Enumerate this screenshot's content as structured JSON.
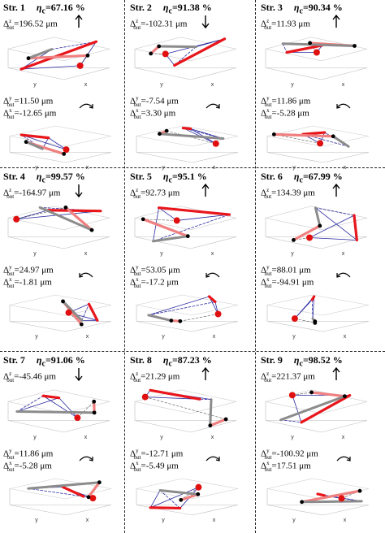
{
  "panels": [
    {
      "title": "Str. 1",
      "eff_symbol": "η",
      "eff_sub": "c",
      "eff_value": "=67.16 %",
      "dz_label": "Δ",
      "dz_sup": "z",
      "dz_sub": "out",
      "dz_value": "=196.52 μm",
      "dz_arrow": "up",
      "dy_label": "Δ",
      "dy_sup": "y",
      "dy_sub": "out",
      "dy_value": "=11.50 μm",
      "dx_label": "Δ",
      "dx_sup": "x",
      "dx_sub": "out",
      "dx_value": "=-12.65 μm",
      "rot_arrow": "cw"
    },
    {
      "title": "Str. 2",
      "eff_symbol": "η",
      "eff_sub": "c",
      "eff_value": "=91.38 %",
      "dz_label": "Δ",
      "dz_sup": "z",
      "dz_sub": "out",
      "dz_value": "=-102.31 μm",
      "dz_arrow": "down",
      "dy_label": "Δ",
      "dy_sup": "y",
      "dy_sub": "out",
      "dy_value": "=-7.54 μm",
      "dx_label": "Δ",
      "dx_sup": "x",
      "dx_sub": "out",
      "dx_value": "=3.30 μm",
      "rot_arrow": "cw"
    },
    {
      "title": "Str. 3",
      "eff_symbol": "η",
      "eff_sub": "c",
      "eff_value": "=90.34 %",
      "dz_label": "Δ",
      "dz_sup": "z",
      "dz_sub": "out",
      "dz_value": "=11.93 μm",
      "dz_arrow": "up",
      "dy_label": "Δ",
      "dy_sup": "y",
      "dy_sub": "out",
      "dy_value": "=11.86 μm",
      "dx_label": "Δ",
      "dx_sup": "x",
      "dx_sub": "out",
      "dx_value": "=-5.28 μm",
      "rot_arrow": "ccw"
    },
    {
      "title": "Str. 4",
      "eff_symbol": "η",
      "eff_sub": "c",
      "eff_value": "=99.57 %",
      "dz_label": "Δ",
      "dz_sup": "z",
      "dz_sub": "out",
      "dz_value": "=-164.97 μm",
      "dz_arrow": "down",
      "dy_label": "Δ",
      "dy_sup": "y",
      "dy_sub": "out",
      "dy_value": "=24.97 μm",
      "dx_label": "Δ",
      "dx_sup": "x",
      "dx_sub": "out",
      "dx_value": "=-1.81 μm",
      "rot_arrow": "ccw"
    },
    {
      "title": "Str. 5",
      "eff_symbol": "η",
      "eff_sub": "c",
      "eff_value": "=95.1 %",
      "dz_label": "Δ",
      "dz_sup": "z",
      "dz_sub": "out",
      "dz_value": "=92.73 μm",
      "dz_arrow": "up",
      "dy_label": "Δ",
      "dy_sup": "y",
      "dy_sub": "out",
      "dy_value": "=53.05 μm",
      "dx_label": "Δ",
      "dx_sup": "x",
      "dx_sub": "out",
      "dx_value": "=-17.2 μm",
      "rot_arrow": "ccw"
    },
    {
      "title": "Str. 6",
      "eff_symbol": "η",
      "eff_sub": "c",
      "eff_value": "=67.99 %",
      "dz_label": "Δ",
      "dz_sup": "z",
      "dz_sub": "out",
      "dz_value": "=134.39 μm",
      "dz_arrow": "up",
      "dy_label": "Δ",
      "dy_sup": "y",
      "dy_sub": "out",
      "dy_value": "=88.01 μm",
      "dx_label": "Δ",
      "dx_sup": "x",
      "dx_sub": "out",
      "dx_value": "=-94.91 μm",
      "rot_arrow": "ccw"
    },
    {
      "title": "Str. 7",
      "eff_symbol": "η",
      "eff_sub": "c",
      "eff_value": "=91.06 %",
      "dz_label": "Δ",
      "dz_sup": "z",
      "dz_sub": "out",
      "dz_value": "=-45.46 μm",
      "dz_arrow": "down",
      "dy_label": "Δ",
      "dy_sup": "y",
      "dy_sub": "out",
      "dy_value": "=11.86 μm",
      "dx_label": "Δ",
      "dx_sup": "x",
      "dx_sub": "out",
      "dx_value": "=-5.28 μm",
      "rot_arrow": "cw"
    },
    {
      "title": "Str. 8",
      "eff_symbol": "η",
      "eff_sub": "c",
      "eff_value": "=87.23 %",
      "dz_label": "Δ",
      "dz_sup": "z",
      "dz_sub": "out",
      "dz_value": "=21.29 μm",
      "dz_arrow": "up",
      "dy_label": "Δ",
      "dy_sup": "y",
      "dy_sub": "out",
      "dy_value": "=-12.71 μm",
      "dx_label": "Δ",
      "dx_sup": "x",
      "dx_sub": "out",
      "dx_value": "=-5.49 μm",
      "rot_arrow": "cw"
    },
    {
      "title": "Str. 9",
      "eff_symbol": "η",
      "eff_sub": "c",
      "eff_value": "=98.52 %",
      "dz_label": "Δ",
      "dz_sup": "z",
      "dz_sub": "out",
      "dz_value": "=221.37 μm",
      "dz_arrow": "up",
      "dy_label": "Δ",
      "dy_sup": "y",
      "dy_sub": "out",
      "dy_value": "=-100.92 μm",
      "dx_label": "Δ",
      "dx_sup": "x",
      "dx_sub": "out",
      "dx_value": "=17.51 μm",
      "rot_arrow": "cw"
    }
  ],
  "colors": {
    "truss_red": "#e8151b",
    "truss_pink": "#f08080",
    "truss_gray": "#8c8c8c",
    "wire_blue": "#2a2aa0",
    "node_red": "#e01010",
    "node_black": "#000000"
  },
  "axis_labels": {
    "x": "x",
    "y": "y"
  }
}
